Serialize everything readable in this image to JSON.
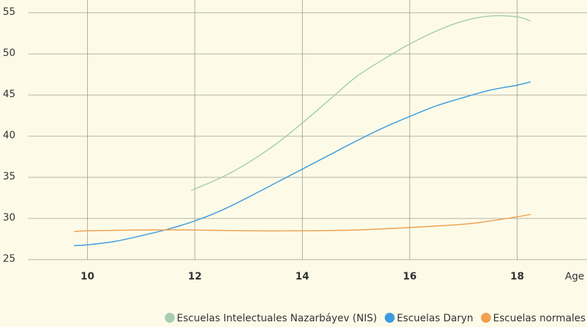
{
  "chart_data": {
    "type": "line",
    "x_label": "Age",
    "xlim": [
      8.9,
      19.3
    ],
    "xticks": [
      10,
      12,
      14,
      16,
      18
    ],
    "ylim": [
      25,
      55
    ],
    "yticks": [
      25,
      30,
      35,
      40,
      45,
      50,
      55
    ],
    "grid": true,
    "legend": "bottom",
    "series": [
      {
        "name": "Escuelas Intelectuales Nazarbáyev (NIS)",
        "color": "#a8cdb2",
        "x": [
          11.93,
          12.5,
          13,
          13.5,
          14,
          14.5,
          15,
          15.5,
          16,
          16.5,
          17,
          17.5,
          18,
          18.25
        ],
        "values": [
          33.4,
          35,
          36.8,
          39,
          41.6,
          44.4,
          47.2,
          49.3,
          51.2,
          52.8,
          54,
          54.6,
          54.5,
          54
        ]
      },
      {
        "name": "Escuelas Daryn",
        "color": "#3d9be0",
        "x": [
          9.75,
          10,
          10.5,
          11,
          11.5,
          12,
          12.5,
          13,
          13.5,
          14,
          14.5,
          15,
          15.5,
          16,
          16.5,
          17,
          17.5,
          18,
          18.25
        ],
        "values": [
          26.7,
          26.8,
          27.2,
          27.9,
          28.7,
          29.7,
          31,
          32.6,
          34.3,
          36,
          37.7,
          39.4,
          41,
          42.4,
          43.7,
          44.7,
          45.6,
          46.2,
          46.6
        ]
      },
      {
        "name": "Escuelas normales",
        "color": "#f0a050",
        "x": [
          9.75,
          10,
          11,
          12,
          13,
          14,
          15,
          16,
          17,
          17.5,
          18,
          18.25
        ],
        "values": [
          28.4,
          28.5,
          28.6,
          28.6,
          28.5,
          28.5,
          28.6,
          28.9,
          29.3,
          29.7,
          30.2,
          30.5
        ]
      }
    ]
  }
}
